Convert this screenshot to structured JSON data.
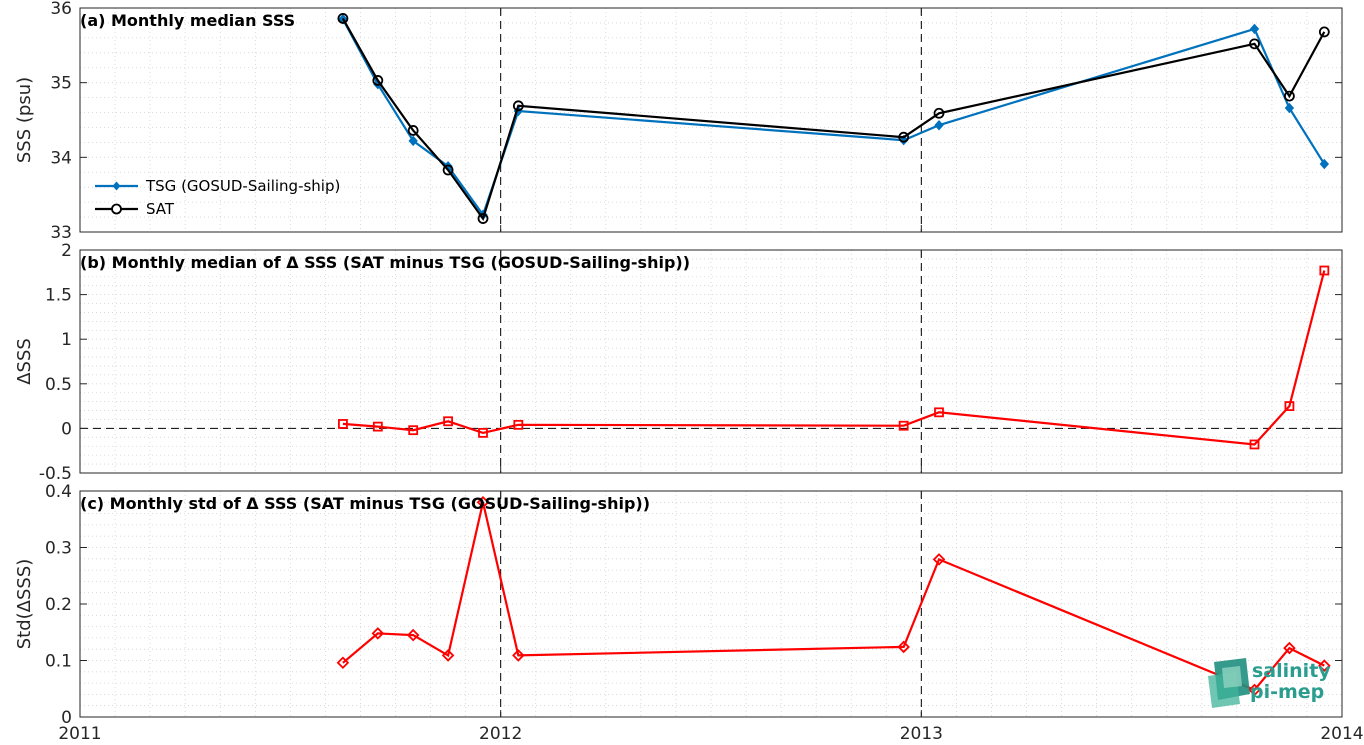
{
  "chart_data": [
    {
      "id": "a",
      "type": "line",
      "title": "(a) Monthly median SSS",
      "ylabel": "SSS (psu)",
      "xlim": [
        2011,
        2014
      ],
      "ylim": [
        33,
        36
      ],
      "yticks": [
        33,
        34,
        35,
        36
      ],
      "ytick_labels": [
        "33",
        "34",
        "35",
        "36"
      ],
      "zero_line": false,
      "legend": "inside left",
      "grid": "dotted",
      "series": [
        {
          "name": "TSG (GOSUD-Sailing-ship)",
          "color": "#0072bd",
          "marker": "diamond-filled",
          "x": [
            2011.625,
            2011.708,
            2011.792,
            2011.875,
            2011.958,
            2012.042,
            2012.958,
            2013.042,
            2013.792,
            2013.875,
            2013.958
          ],
          "y": [
            35.85,
            34.98,
            34.22,
            33.88,
            33.23,
            34.62,
            34.23,
            34.43,
            35.72,
            34.66,
            33.91
          ]
        },
        {
          "name": "SAT",
          "color": "#000000",
          "marker": "circle-open",
          "x": [
            2011.625,
            2011.708,
            2011.792,
            2011.875,
            2011.958,
            2012.042,
            2012.958,
            2013.042,
            2013.792,
            2013.875,
            2013.958
          ],
          "y": [
            35.86,
            35.03,
            34.36,
            33.83,
            33.18,
            34.69,
            34.27,
            34.59,
            35.52,
            34.82,
            35.68
          ]
        }
      ]
    },
    {
      "id": "b",
      "type": "line",
      "title": "(b) Monthly median of Δ SSS (SAT minus TSG (GOSUD-Sailing-ship))",
      "ylabel": "ΔSSS",
      "xlim": [
        2011,
        2014
      ],
      "ylim": [
        -0.5,
        2
      ],
      "yticks": [
        -0.5,
        0,
        0.5,
        1,
        1.5,
        2
      ],
      "ytick_labels": [
        "-0.5",
        "0",
        "0.5",
        "1",
        "1.5",
        "2"
      ],
      "zero_line": true,
      "grid": "dotted",
      "series": [
        {
          "color": "#ff0000",
          "marker": "square-open",
          "x": [
            2011.625,
            2011.708,
            2011.792,
            2011.875,
            2011.958,
            2012.042,
            2012.958,
            2013.042,
            2013.792,
            2013.875,
            2013.958
          ],
          "y": [
            0.05,
            0.02,
            -0.02,
            0.08,
            -0.05,
            0.04,
            0.03,
            0.18,
            -0.18,
            0.25,
            1.77
          ]
        }
      ]
    },
    {
      "id": "c",
      "type": "line",
      "title": "(c) Monthly std of Δ SSS (SAT minus TSG (GOSUD-Sailing-ship))",
      "ylabel": "Std(ΔSSS)",
      "xlim": [
        2011,
        2014
      ],
      "ylim": [
        0,
        0.4
      ],
      "yticks": [
        0,
        0.1,
        0.2,
        0.3,
        0.4
      ],
      "ytick_labels": [
        "0",
        "0.1",
        "0.2",
        "0.3",
        "0.4"
      ],
      "zero_line": false,
      "grid": "dotted",
      "xticks": [
        2011,
        2012,
        2013,
        2014
      ],
      "xtick_labels": [
        "2011",
        "2012",
        "2013",
        "2014"
      ],
      "series": [
        {
          "color": "#ff0000",
          "marker": "diamond-open",
          "x": [
            2011.625,
            2011.708,
            2011.792,
            2011.875,
            2011.958,
            2012.042,
            2012.958,
            2013.042,
            2013.792,
            2013.875,
            2013.958
          ],
          "y": [
            0.096,
            0.148,
            0.145,
            0.109,
            0.38,
            0.109,
            0.124,
            0.279,
            0.048,
            0.122,
            0.091
          ]
        }
      ]
    }
  ],
  "year_boundaries": [
    2012,
    2013
  ],
  "logo": {
    "line1": "salinity",
    "line2": "pi-mep",
    "color": "#2a9d8f"
  }
}
